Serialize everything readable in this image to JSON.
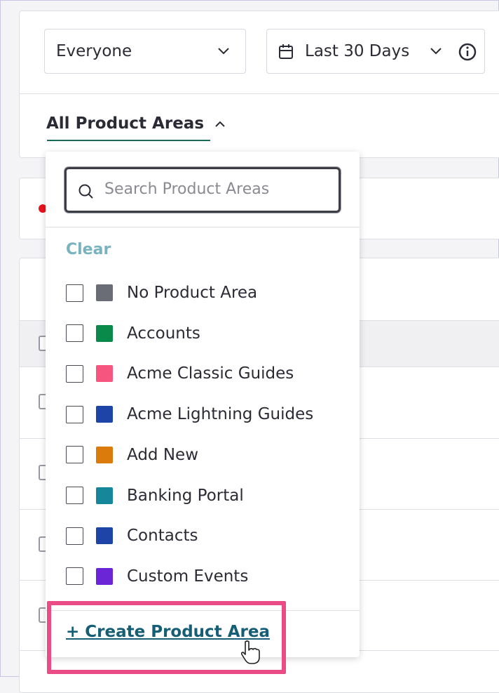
{
  "filters": {
    "audience": "Everyone",
    "date_range": "Last 30 Days",
    "product_areas": "All Product Areas"
  },
  "dropdown": {
    "search_placeholder": "Search Product Areas",
    "clear": "Clear",
    "items": [
      {
        "label": "No Product Area",
        "color": "#6b6d76"
      },
      {
        "label": "Accounts",
        "color": "#0a8a4a"
      },
      {
        "label": "Acme Classic Guides",
        "color": "#f5557f"
      },
      {
        "label": "Acme Lightning Guides",
        "color": "#1f44a8"
      },
      {
        "label": "Add New",
        "color": "#db7b0b"
      },
      {
        "label": "Banking Portal",
        "color": "#16879a"
      },
      {
        "label": "Contacts",
        "color": "#1f44a8"
      },
      {
        "label": "Custom Events",
        "color": "#6b25d6"
      }
    ],
    "create": "+ Create Product Area"
  }
}
